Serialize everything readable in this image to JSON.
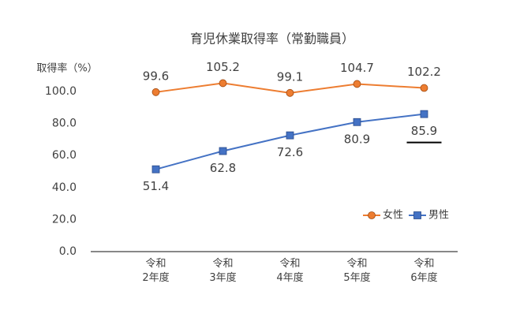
{
  "chart_data": {
    "type": "line",
    "title": "育児休業取得率（常勤職員）",
    "y_label": "取得率（%）",
    "categories": [
      "令和\n2年度",
      "令和\n3年度",
      "令和\n4年度",
      "令和\n5年度",
      "令和\n6年度"
    ],
    "series": [
      {
        "name": "女性",
        "color": "#ed7d31",
        "marker": "circle",
        "values": [
          99.6,
          105.2,
          99.1,
          104.7,
          102.2
        ]
      },
      {
        "name": "男性",
        "color": "#4472c4",
        "marker": "square",
        "values": [
          51.4,
          62.8,
          72.6,
          80.9,
          85.9
        ]
      }
    ],
    "ylim": [
      0,
      110
    ],
    "yticks": [
      {
        "value": 0,
        "label": "0.0"
      },
      {
        "value": 20,
        "label": "20.0"
      },
      {
        "value": 40,
        "label": "40.0"
      },
      {
        "value": 60,
        "label": "60.0"
      },
      {
        "value": 80,
        "label": "80.0"
      },
      {
        "value": 100,
        "label": "100.0"
      }
    ],
    "grid": false
  }
}
